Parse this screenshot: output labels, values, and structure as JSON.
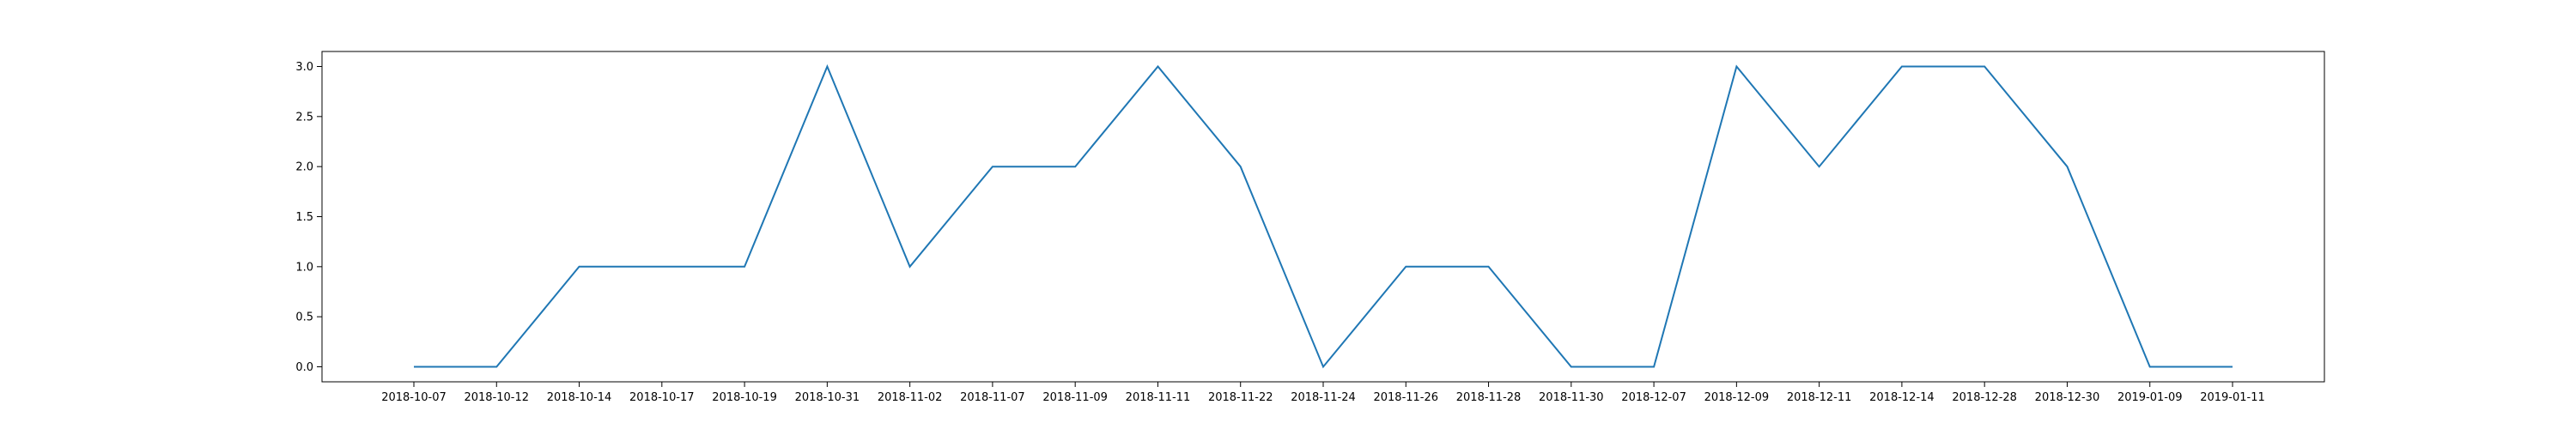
{
  "chart_data": {
    "type": "line",
    "title": "",
    "xlabel": "",
    "ylabel": "",
    "categories": [
      "2018-10-07",
      "2018-10-12",
      "2018-10-14",
      "2018-10-17",
      "2018-10-19",
      "2018-10-31",
      "2018-11-02",
      "2018-11-07",
      "2018-11-09",
      "2018-11-11",
      "2018-11-22",
      "2018-11-24",
      "2018-11-26",
      "2018-11-28",
      "2018-11-30",
      "2018-12-07",
      "2018-12-09",
      "2018-12-11",
      "2018-12-14",
      "2018-12-28",
      "2018-12-30",
      "2019-01-09",
      "2019-01-11"
    ],
    "series": [
      {
        "values": [
          0,
          0,
          1,
          1,
          1,
          3,
          1,
          2,
          2,
          3,
          2,
          0,
          1,
          1,
          0,
          0,
          3,
          2,
          3,
          3,
          2,
          0,
          0
        ],
        "color": "#1f77b4"
      }
    ],
    "ylim": [
      -0.15,
      3.15
    ],
    "yticks": [
      0.0,
      0.5,
      1.0,
      1.5,
      2.0,
      2.5,
      3.0
    ],
    "ytick_labels": [
      "0.0",
      "0.5",
      "1.0",
      "1.5",
      "2.0",
      "2.5",
      "3.0"
    ],
    "grid": false,
    "legend": "none"
  }
}
